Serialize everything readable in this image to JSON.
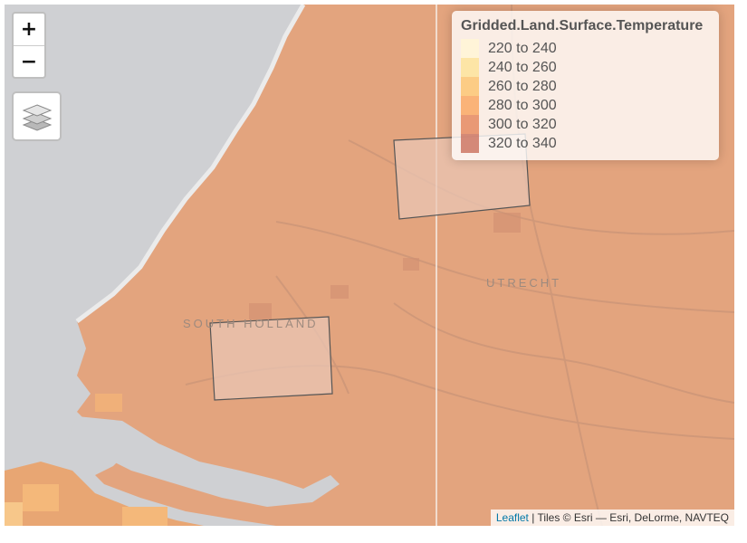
{
  "map": {
    "basemap_colors": {
      "land": "#e3a47e",
      "water": "#cfd0d3",
      "coast": "#ebebeb"
    },
    "place_labels": {
      "utrecht": "UTRECHT",
      "south_holland": "SOUTH HOLLAND"
    }
  },
  "controls": {
    "zoom_in_label": "+",
    "zoom_out_label": "−",
    "layers_icon": "layers-icon"
  },
  "legend": {
    "title": "Gridded.Land.Surface.Temperature",
    "items": [
      {
        "label": "220 to 240",
        "color": "#fff5d6"
      },
      {
        "label": "240 to 260",
        "color": "#fde39b"
      },
      {
        "label": "260 to 280",
        "color": "#fbc574"
      },
      {
        "label": "280 to 300",
        "color": "#f9a865"
      },
      {
        "label": "300 to 320",
        "color": "#e58a62"
      },
      {
        "label": "320 to 340",
        "color": "#cc7763"
      }
    ]
  },
  "attribution": {
    "link": "Leaflet",
    "text": "| Tiles © Esri — Esri, DeLorme, NAVTEQ"
  }
}
